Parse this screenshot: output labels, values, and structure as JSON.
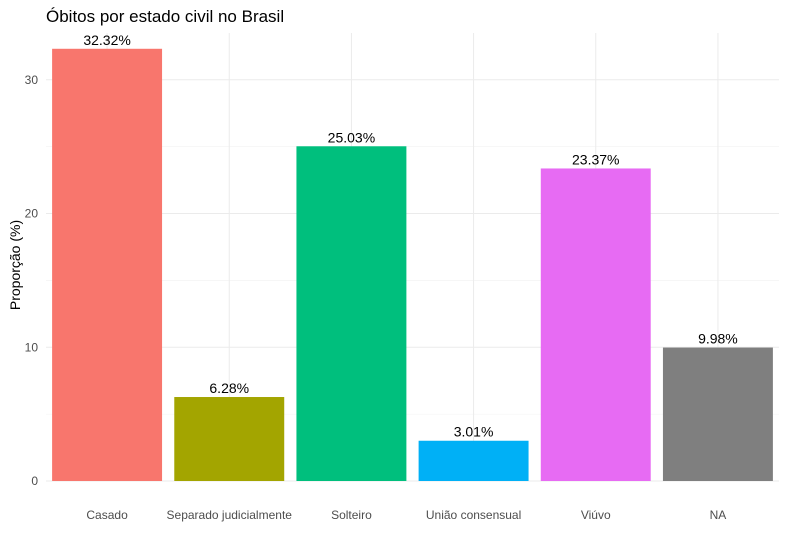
{
  "chart_data": {
    "type": "bar",
    "title": "Óbitos por estado civil no Brasil",
    "xlabel": "",
    "ylabel": "Proporção (%)",
    "ylim": [
      0,
      33.5
    ],
    "yticks": [
      0,
      10,
      20,
      30
    ],
    "grid": true,
    "legend": "none",
    "categories": [
      "Casado",
      "Separado judicialmente",
      "Solteiro",
      "União consensual",
      "Viúvo",
      "NA"
    ],
    "values": [
      32.32,
      6.28,
      25.03,
      3.01,
      23.37,
      9.98
    ],
    "data_labels": [
      "32.32%",
      "6.28%",
      "25.03%",
      "3.01%",
      "23.37%",
      "9.98%"
    ],
    "colors": [
      "#F8766D",
      "#A3A500",
      "#00BF7D",
      "#00B0F6",
      "#E76BF3",
      "#7F7F7F"
    ]
  }
}
